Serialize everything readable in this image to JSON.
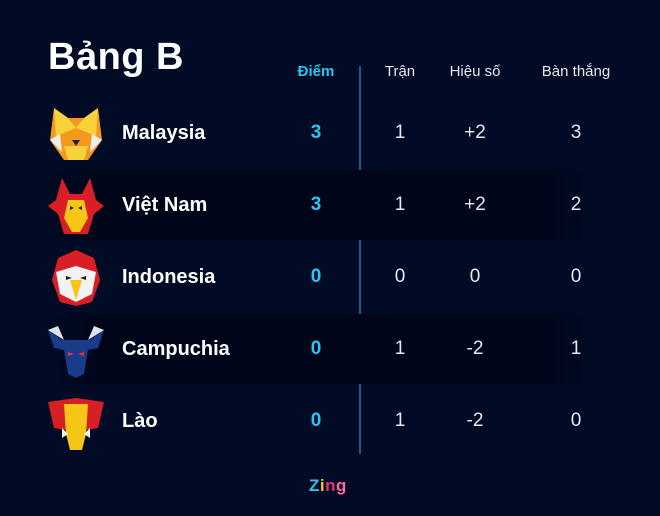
{
  "title": "Bảng B",
  "columns": {
    "points": "Điểm",
    "played": "Trận",
    "goal_diff": "Hiệu số",
    "goals_for": "Bàn thắng"
  },
  "teams": [
    {
      "name": "Malaysia",
      "icon": "tiger-mascot-icon",
      "points": "3",
      "played": "1",
      "goal_diff": "+2",
      "goals_for": "3"
    },
    {
      "name": "Việt Nam",
      "icon": "dragon-mascot-icon",
      "points": "3",
      "played": "1",
      "goal_diff": "+2",
      "goals_for": "2"
    },
    {
      "name": "Indonesia",
      "icon": "eagle-mascot-icon",
      "points": "0",
      "played": "0",
      "goal_diff": "0",
      "goals_for": "0"
    },
    {
      "name": "Campuchia",
      "icon": "buffalo-mascot-icon",
      "points": "0",
      "played": "1",
      "goal_diff": "-2",
      "goals_for": "1"
    },
    {
      "name": "Lào",
      "icon": "elephant-mascot-icon",
      "points": "0",
      "played": "1",
      "goal_diff": "-2",
      "goals_for": "0"
    }
  ],
  "brand": {
    "text": "Zing",
    "colors": [
      "#2ec4ee",
      "#f5c518",
      "#e8306f",
      "#ff6a9a"
    ]
  },
  "colors": {
    "background": "#020b25",
    "accent": "#2ec4ee",
    "divider": "#1e5b86"
  }
}
